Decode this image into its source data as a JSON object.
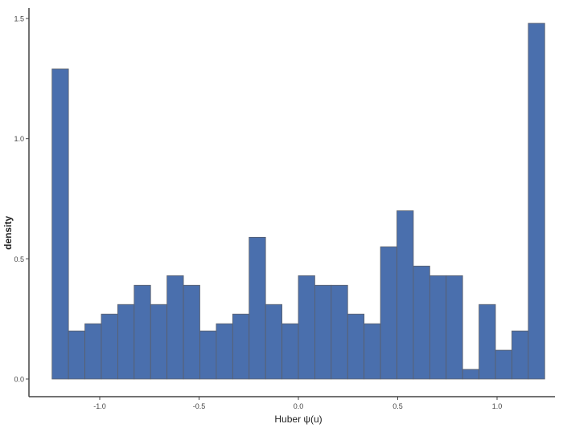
{
  "chart_data": {
    "type": "bar",
    "subtype": "histogram",
    "xlabel": "Huber ψ(u)",
    "ylabel": "density",
    "xlim": [
      -1.3,
      1.3
    ],
    "ylim": [
      -0.05,
      1.55
    ],
    "x_ticks": [
      -1.0,
      -0.5,
      0.0,
      0.5,
      1.0
    ],
    "x_tick_labels": [
      "-1.0",
      "-0.5",
      "0.0",
      "0.5",
      "1.0"
    ],
    "y_ticks": [
      0.0,
      0.5,
      1.0,
      1.5
    ],
    "y_tick_labels": [
      "0.0",
      "0.5",
      "1.0",
      "1.5"
    ],
    "bin_range": [
      -1.24,
      1.24
    ],
    "bins": 30,
    "values": [
      1.29,
      0.2,
      0.23,
      0.27,
      0.31,
      0.39,
      0.31,
      0.43,
      0.39,
      0.2,
      0.23,
      0.27,
      0.59,
      0.31,
      0.23,
      0.43,
      0.39,
      0.39,
      0.27,
      0.23,
      0.55,
      0.7,
      0.47,
      0.43,
      0.43,
      0.04,
      0.31,
      0.12,
      0.2,
      1.48
    ],
    "grid": false,
    "bar_color": "#4a6fad",
    "bar_edge_color": "#5a5f6a"
  }
}
